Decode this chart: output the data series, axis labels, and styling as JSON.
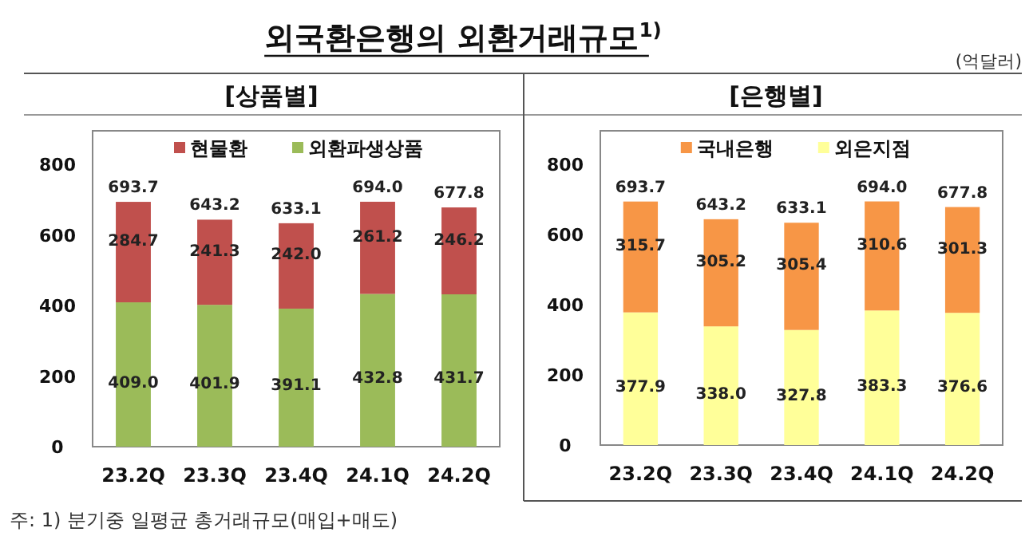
{
  "chart_data": [
    {
      "type": "bar",
      "title": "외국환은행의 외환거래규모$^{1)}$",
      "subtitle": "[상품별]",
      "categories": [
        "23.2Q",
        "23.3Q",
        "23.4Q",
        "24.1Q",
        "24.2Q"
      ],
      "stacked": true,
      "legend": "top",
      "ylim": [
        0,
        895
      ],
      "yticks": [
        0,
        200,
        400,
        600,
        800
      ],
      "series": [
        {
          "name": "외환파생상품",
          "color": "#9bbb59",
          "values": [
            409.0,
            401.9,
            391.1,
            432.8,
            431.7
          ],
          "value_labels": [
            "409.0",
            "401.9",
            "391.1",
            "432.8",
            "431.7"
          ]
        },
        {
          "name": "현물환",
          "color": "#c0504d",
          "values": [
            284.7,
            241.3,
            242.0,
            261.2,
            246.2
          ],
          "value_labels": [
            "284.7",
            "241.3",
            "242.0",
            "261.2",
            "246.2"
          ]
        }
      ],
      "totals": [
        "693.7",
        "643.2",
        "633.1",
        "694.0",
        "677.8"
      ],
      "annotations": [
        "주: 1) 분기중 일평균 총거래규모(매입+매도)"
      ]
    },
    {
      "type": "bar",
      "subtitle": "[은행별]",
      "categories": [
        "23.2Q",
        "23.3Q",
        "23.4Q",
        "24.1Q",
        "24.2Q"
      ],
      "stacked": true,
      "legend": "top",
      "ylim": [
        0,
        895
      ],
      "yticks": [
        0,
        200,
        400,
        600,
        800
      ],
      "series": [
        {
          "name": "외은지점",
          "color": "#ffff99",
          "values": [
            377.9,
            338.0,
            327.8,
            383.3,
            376.6
          ],
          "value_labels": [
            "377.9",
            "338.0",
            "327.8",
            "383.3",
            "376.6"
          ]
        },
        {
          "name": "국내은행",
          "color": "#f79646",
          "values": [
            315.7,
            305.2,
            305.4,
            310.6,
            301.3
          ],
          "value_labels": [
            "315.7",
            "305.2",
            "305.4",
            "310.6",
            "301.3"
          ]
        }
      ],
      "totals": [
        "693.7",
        "643.2",
        "633.1",
        "694.0",
        "677.8"
      ],
      "annotations": [
        "(억달러)"
      ]
    }
  ]
}
